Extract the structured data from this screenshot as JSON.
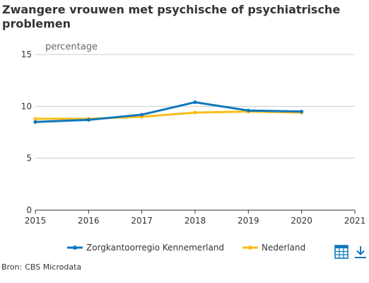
{
  "title": "Zwangere vrouwen met psychische of psychiatrische problemen",
  "unit_label": "percentage",
  "source": {
    "prefix": "Bron:",
    "name": "CBS Microdata"
  },
  "colors": {
    "series_1": "#0f77bc",
    "series_2": "#f8bd1a",
    "grid": "#cccccc",
    "axis": "#333333"
  },
  "icons": {
    "table": "table-icon",
    "download": "download-icon"
  },
  "chart_data": {
    "type": "line",
    "x": [
      2015,
      2016,
      2017,
      2018,
      2019,
      2020
    ],
    "xticks": [
      "2015",
      "2016",
      "2017",
      "2018",
      "2019",
      "2020",
      "2021"
    ],
    "xlim": [
      2015,
      2021
    ],
    "yticks": [
      "0",
      "5",
      "10",
      "15"
    ],
    "ylim": [
      0,
      15
    ],
    "ylabel": "percentage",
    "grid": "horizontal",
    "legend": "bottom",
    "series": [
      {
        "name": "Zorgkantoorregio Kennemerland",
        "values": [
          8.5,
          8.7,
          9.2,
          10.4,
          9.6,
          9.5
        ]
      },
      {
        "name": "Nederland",
        "values": [
          8.8,
          8.8,
          9.0,
          9.4,
          9.5,
          9.4
        ]
      }
    ]
  }
}
